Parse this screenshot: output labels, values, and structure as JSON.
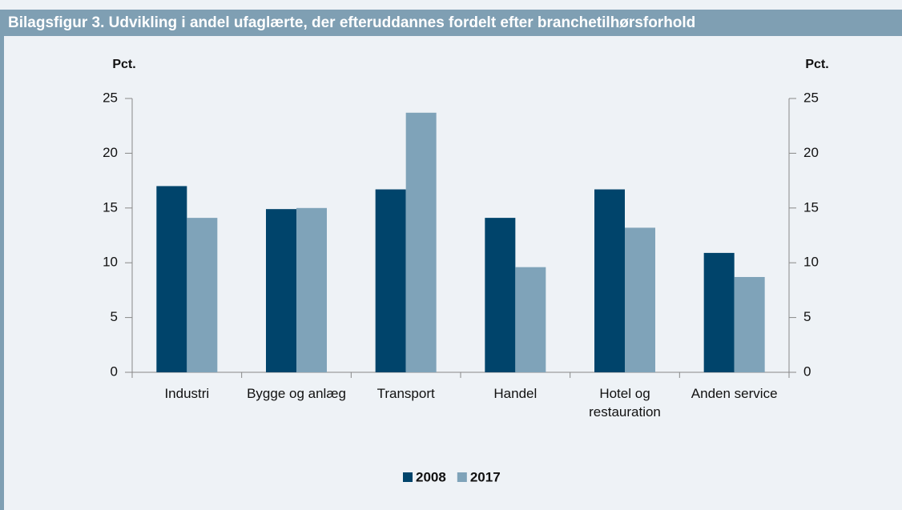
{
  "chart_data": {
    "type": "bar",
    "title": "Bilagsfigur 3. Udvikling i andel ufaglærte, der efteruddannes fordelt efter branchetilhørsforhold",
    "y_label": "Pct.",
    "y2_label": "Pct.",
    "categories": [
      "Industri",
      "Bygge og anlæg",
      "Transport",
      "Handel",
      "Hotel og restauration",
      "Anden service"
    ],
    "series": [
      {
        "name": "2008",
        "color": "#00446b",
        "values": [
          17.0,
          14.9,
          16.7,
          14.1,
          16.7,
          10.9
        ]
      },
      {
        "name": "2017",
        "color": "#7fa3b9",
        "values": [
          14.1,
          15.0,
          23.7,
          9.6,
          13.2,
          8.7
        ]
      }
    ],
    "ylim": [
      0,
      25
    ],
    "yticks": [
      0,
      5,
      10,
      15,
      20,
      25
    ],
    "y2lim": [
      0,
      25
    ],
    "y2ticks": [
      0,
      5,
      10,
      15,
      20,
      25
    ],
    "legend": "bottom"
  }
}
